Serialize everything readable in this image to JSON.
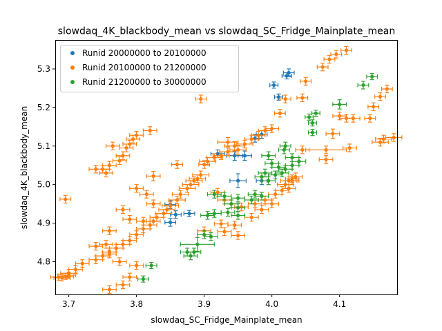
{
  "chart_data": {
    "type": "scatter",
    "title": "slowdaq_4K_blackbody_mean vs slowdaq_SC_Fridge_Mainplate_mean",
    "xlabel": "slowdaq_SC_Fridge_Mainplate_mean",
    "ylabel": "slowdaq_4K_blackbody_mean",
    "xlim": [
      3.68,
      4.185
    ],
    "ylim": [
      4.715,
      5.375
    ],
    "xticks": [
      "3.7",
      "3.8",
      "3.9",
      "4.0",
      "4.1"
    ],
    "yticks": [
      "4.8",
      "4.9",
      "5.0",
      "5.1",
      "5.2",
      "5.3"
    ],
    "grid": false,
    "legend_position": "upper-left",
    "series": [
      {
        "name": "Runid 20000000 to 20100000",
        "color": "#1f77b4",
        "points": [
          [
            4.025,
            5.29,
            0.008,
            0.01
          ],
          [
            4.022,
            5.282,
            0.007,
            0.008
          ],
          [
            4.003,
            5.258,
            0.006,
            0.008
          ],
          [
            4.01,
            5.227,
            0.006,
            0.008
          ],
          [
            3.985,
            5.13,
            0.008,
            0.01
          ],
          [
            3.975,
            5.12,
            0.006,
            0.01
          ],
          [
            3.92,
            5.08,
            0.01,
            0.01
          ],
          [
            3.96,
            5.075,
            0.01,
            0.012
          ],
          [
            3.945,
            5.075,
            0.012,
            0.012
          ],
          [
            3.95,
            5.01,
            0.012,
            0.018
          ],
          [
            3.985,
            5.01,
            0.008,
            0.01
          ],
          [
            3.85,
            4.948,
            0.008,
            0.01
          ],
          [
            3.858,
            4.922,
            0.008,
            0.01
          ],
          [
            3.85,
            4.902,
            0.008,
            0.01
          ],
          [
            3.878,
            4.925,
            0.008,
            0.008
          ]
        ]
      },
      {
        "name": "Runid 20100000 to 21200000",
        "color": "#ff7f0e",
        "points": [
          [
            4.11,
            5.348,
            0.008,
            0.01
          ],
          [
            4.095,
            5.338,
            0.008,
            0.01
          ],
          [
            4.085,
            5.325,
            0.008,
            0.01
          ],
          [
            4.075,
            5.305,
            0.008,
            0.01
          ],
          [
            4.05,
            5.268,
            0.008,
            0.01
          ],
          [
            3.895,
            5.222,
            0.008,
            0.01
          ],
          [
            4.045,
            5.225,
            0.008,
            0.01
          ],
          [
            4.02,
            5.222,
            0.008,
            0.01
          ],
          [
            4.17,
            5.248,
            0.008,
            0.01
          ],
          [
            4.16,
            5.228,
            0.008,
            0.01
          ],
          [
            4.15,
            5.202,
            0.008,
            0.01
          ],
          [
            4.1,
            5.178,
            0.01,
            0.01
          ],
          [
            4.11,
            5.172,
            0.01,
            0.01
          ],
          [
            4.12,
            5.172,
            0.01,
            0.01
          ],
          [
            4.145,
            5.172,
            0.008,
            0.01
          ],
          [
            4.012,
            5.185,
            0.008,
            0.01
          ],
          [
            4.09,
            5.132,
            0.01,
            0.012
          ],
          [
            3.82,
            5.14,
            0.01,
            0.01
          ],
          [
            3.8,
            5.128,
            0.01,
            0.01
          ],
          [
            3.795,
            5.118,
            0.01,
            0.01
          ],
          [
            3.79,
            5.105,
            0.01,
            0.01
          ],
          [
            3.785,
            5.095,
            0.01,
            0.01
          ],
          [
            3.765,
            5.1,
            0.01,
            0.01
          ],
          [
            3.78,
            5.075,
            0.01,
            0.01
          ],
          [
            3.775,
            5.062,
            0.01,
            0.01
          ],
          [
            3.76,
            5.05,
            0.01,
            0.01
          ],
          [
            3.75,
            5.04,
            0.01,
            0.01
          ],
          [
            3.74,
            5.04,
            0.01,
            0.01
          ],
          [
            3.755,
            5.03,
            0.01,
            0.01
          ],
          [
            3.86,
            5.052,
            0.008,
            0.01
          ],
          [
            3.9,
            5.052,
            0.008,
            0.01
          ],
          [
            3.825,
            5.022,
            0.01,
            0.012
          ],
          [
            3.695,
            4.962,
            0.008,
            0.01
          ],
          [
            3.935,
            5.11,
            0.015,
            0.012
          ],
          [
            3.945,
            5.1,
            0.015,
            0.012
          ],
          [
            3.95,
            5.09,
            0.012,
            0.012
          ],
          [
            3.935,
            5.085,
            0.012,
            0.01
          ],
          [
            3.925,
            5.075,
            0.012,
            0.01
          ],
          [
            3.915,
            5.07,
            0.012,
            0.01
          ],
          [
            3.905,
            5.06,
            0.012,
            0.01
          ],
          [
            3.96,
            5.105,
            0.012,
            0.01
          ],
          [
            3.97,
            5.118,
            0.01,
            0.01
          ],
          [
            3.98,
            5.128,
            0.01,
            0.01
          ],
          [
            3.99,
            5.14,
            0.01,
            0.01
          ],
          [
            4.0,
            5.145,
            0.01,
            0.01
          ],
          [
            3.895,
            5.025,
            0.012,
            0.01
          ],
          [
            3.89,
            5.015,
            0.012,
            0.01
          ],
          [
            3.885,
            5.01,
            0.012,
            0.01
          ],
          [
            3.88,
            5.0,
            0.012,
            0.01
          ],
          [
            3.875,
            4.99,
            0.012,
            0.01
          ],
          [
            3.865,
            4.975,
            0.012,
            0.01
          ],
          [
            3.86,
            4.96,
            0.012,
            0.01
          ],
          [
            3.85,
            4.945,
            0.012,
            0.01
          ],
          [
            3.845,
            4.935,
            0.012,
            0.01
          ],
          [
            3.84,
            4.925,
            0.012,
            0.01
          ],
          [
            3.83,
            4.915,
            0.01,
            0.01
          ],
          [
            3.825,
            4.905,
            0.01,
            0.01
          ],
          [
            3.82,
            4.895,
            0.01,
            0.01
          ],
          [
            3.81,
            4.885,
            0.01,
            0.01
          ],
          [
            3.8,
            4.87,
            0.01,
            0.01
          ],
          [
            3.79,
            4.855,
            0.01,
            0.01
          ],
          [
            3.78,
            4.845,
            0.01,
            0.01
          ],
          [
            3.77,
            4.835,
            0.01,
            0.01
          ],
          [
            3.76,
            4.825,
            0.01,
            0.01
          ],
          [
            3.75,
            4.815,
            0.01,
            0.01
          ],
          [
            3.74,
            4.805,
            0.01,
            0.01
          ],
          [
            3.72,
            4.795,
            0.01,
            0.01
          ],
          [
            3.71,
            4.78,
            0.01,
            0.01
          ],
          [
            3.7,
            4.77,
            0.012,
            0.01
          ],
          [
            3.695,
            4.762,
            0.012,
            0.008
          ],
          [
            3.69,
            4.758,
            0.012,
            0.008
          ],
          [
            3.685,
            4.76,
            0.012,
            0.008
          ],
          [
            3.7,
            4.765,
            0.01,
            0.008
          ],
          [
            3.74,
            4.84,
            0.01,
            0.01
          ],
          [
            3.76,
            4.82,
            0.01,
            0.01
          ],
          [
            3.775,
            4.8,
            0.01,
            0.01
          ],
          [
            3.8,
            4.79,
            0.01,
            0.01
          ],
          [
            3.79,
            4.76,
            0.01,
            0.01
          ],
          [
            3.78,
            4.74,
            0.01,
            0.01
          ],
          [
            3.76,
            4.728,
            0.01,
            0.01
          ],
          [
            3.755,
            4.845,
            0.01,
            0.01
          ],
          [
            3.76,
            4.88,
            0.01,
            0.01
          ],
          [
            3.78,
            4.935,
            0.01,
            0.01
          ],
          [
            3.79,
            4.91,
            0.01,
            0.01
          ],
          [
            3.8,
            4.99,
            0.01,
            0.01
          ],
          [
            3.815,
            4.975,
            0.01,
            0.01
          ],
          [
            3.825,
            4.95,
            0.01,
            0.01
          ],
          [
            3.81,
            4.905,
            0.01,
            0.01
          ],
          [
            3.92,
            4.98,
            0.01,
            0.01
          ],
          [
            3.93,
            4.96,
            0.01,
            0.01
          ],
          [
            3.94,
            4.95,
            0.01,
            0.01
          ],
          [
            3.955,
            4.942,
            0.01,
            0.01
          ],
          [
            3.975,
            4.95,
            0.01,
            0.01
          ],
          [
            3.99,
            4.96,
            0.01,
            0.01
          ],
          [
            4.005,
            4.975,
            0.01,
            0.01
          ],
          [
            4.015,
            4.985,
            0.01,
            0.01
          ],
          [
            4.025,
            5.01,
            0.012,
            0.01
          ],
          [
            4.02,
            5.0,
            0.012,
            0.01
          ],
          [
            4.03,
            5.015,
            0.01,
            0.01
          ],
          [
            3.925,
            4.898,
            0.01,
            0.01
          ],
          [
            3.945,
            4.895,
            0.01,
            0.01
          ],
          [
            3.97,
            4.915,
            0.01,
            0.01
          ],
          [
            3.985,
            4.935,
            0.01,
            0.01
          ],
          [
            4.0,
            4.95,
            0.01,
            0.01
          ],
          [
            4.025,
            4.99,
            0.01,
            0.01
          ],
          [
            3.9,
            4.88,
            0.01,
            0.01
          ],
          [
            3.93,
            4.878,
            0.01,
            0.01
          ],
          [
            3.95,
            4.868,
            0.01,
            0.01
          ],
          [
            4.045,
            5.09,
            0.01,
            0.01
          ],
          [
            4.08,
            5.09,
            0.03,
            0.01
          ],
          [
            4.08,
            5.065,
            0.01,
            0.01
          ],
          [
            4.115,
            5.095,
            0.01,
            0.01
          ],
          [
            4.16,
            5.11,
            0.012,
            0.01
          ],
          [
            4.165,
            5.118,
            0.012,
            0.01
          ],
          [
            4.18,
            5.122,
            0.012,
            0.01
          ],
          [
            4.03,
            5.01,
            0.01,
            0.01
          ],
          [
            4.035,
            5.02,
            0.01,
            0.01
          ]
        ]
      },
      {
        "name": "Runid 21200000 to 30000000",
        "color": "#2ca02c",
        "points": [
          [
            4.148,
            5.28,
            0.008,
            0.008
          ],
          [
            4.135,
            5.258,
            0.008,
            0.01
          ],
          [
            4.1,
            5.208,
            0.01,
            0.012
          ],
          [
            4.065,
            5.185,
            0.006,
            0.008
          ],
          [
            4.055,
            5.175,
            0.006,
            0.008
          ],
          [
            4.06,
            5.16,
            0.006,
            0.008
          ],
          [
            4.06,
            5.135,
            0.006,
            0.008
          ],
          [
            4.02,
            5.1,
            0.008,
            0.01
          ],
          [
            4.018,
            5.09,
            0.008,
            0.01
          ],
          [
            3.995,
            5.075,
            0.01,
            0.01
          ],
          [
            4.03,
            5.07,
            0.01,
            0.01
          ],
          [
            4.04,
            5.06,
            0.01,
            0.01
          ],
          [
            4.0,
            5.055,
            0.01,
            0.01
          ],
          [
            4.01,
            5.045,
            0.01,
            0.01
          ],
          [
            4.02,
            5.04,
            0.01,
            0.01
          ],
          [
            4.03,
            5.05,
            0.01,
            0.01
          ],
          [
            3.99,
            5.03,
            0.01,
            0.01
          ],
          [
            3.985,
            5.02,
            0.01,
            0.01
          ],
          [
            3.995,
            5.01,
            0.01,
            0.01
          ],
          [
            4.005,
            5.025,
            0.01,
            0.01
          ],
          [
            4.015,
            5.03,
            0.01,
            0.01
          ],
          [
            3.915,
            4.975,
            0.01,
            0.01
          ],
          [
            3.93,
            4.97,
            0.01,
            0.01
          ],
          [
            3.95,
            4.965,
            0.01,
            0.01
          ],
          [
            3.97,
            4.96,
            0.01,
            0.01
          ],
          [
            3.985,
            4.97,
            0.01,
            0.01
          ],
          [
            3.975,
            4.975,
            0.01,
            0.01
          ],
          [
            3.94,
            4.95,
            0.01,
            0.01
          ],
          [
            3.95,
            4.94,
            0.01,
            0.01
          ],
          [
            3.935,
            4.928,
            0.01,
            0.01
          ],
          [
            3.95,
            4.92,
            0.01,
            0.01
          ],
          [
            3.905,
            4.92,
            0.01,
            0.01
          ],
          [
            3.915,
            4.925,
            0.01,
            0.01
          ],
          [
            3.9,
            4.87,
            0.01,
            0.01
          ],
          [
            3.91,
            4.865,
            0.01,
            0.01
          ],
          [
            3.89,
            4.845,
            0.025,
            0.018
          ],
          [
            3.885,
            4.825,
            0.01,
            0.01
          ],
          [
            3.88,
            4.815,
            0.01,
            0.01
          ],
          [
            3.875,
            4.825,
            0.01,
            0.01
          ],
          [
            3.822,
            4.79,
            0.008,
            0.008
          ],
          [
            3.81,
            4.755,
            0.008,
            0.008
          ]
        ]
      }
    ]
  }
}
